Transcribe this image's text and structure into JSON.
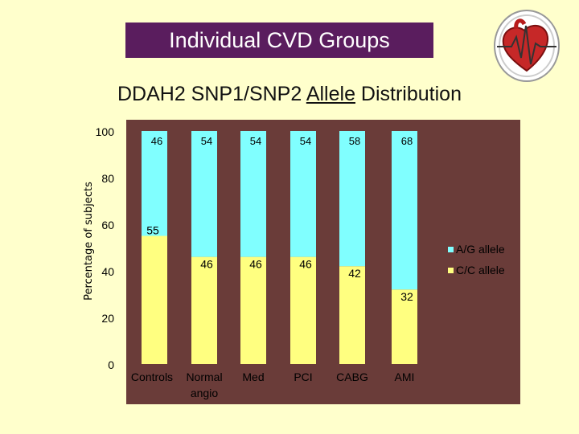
{
  "header": {
    "title": "Individual CVD Groups"
  },
  "subtitle": {
    "pre": "DDAH2 SNP1/SNP2 ",
    "underlined": "Allele",
    "post": " Distribution"
  },
  "logo": {
    "icon": "heart-ecg-icon"
  },
  "colors": {
    "plot_bg": "#6a3c39",
    "top_series": "#80ffff",
    "bottom_series": "#ffff80",
    "banner": "#5a1d5e",
    "page_bg": "#ffffcc"
  },
  "chart_data": {
    "type": "bar",
    "stacked": true,
    "title": "DDAH2 SNP1/SNP2 Allele Distribution",
    "xlabel": "",
    "ylabel": "Percentage of subjects",
    "categories": [
      "Controls",
      "Normal angio",
      "Med",
      "PCI",
      "CABG",
      "AMI"
    ],
    "category_lines": [
      [
        "Controls"
      ],
      [
        "Normal",
        "angio"
      ],
      [
        "Med"
      ],
      [
        "PCI"
      ],
      [
        "CABG"
      ],
      [
        "AMI"
      ]
    ],
    "series": [
      {
        "name": "C/C allele",
        "values": [
          55,
          46,
          46,
          46,
          42,
          32
        ],
        "color": "#ffff80"
      },
      {
        "name": "A/G allele",
        "values": [
          46,
          54,
          54,
          54,
          58,
          68
        ],
        "color": "#80ffff"
      }
    ],
    "ylim": [
      0,
      100
    ],
    "yticks": [
      0,
      20,
      40,
      60,
      80,
      100
    ],
    "legend": [
      "A/G allele",
      "C/C allele"
    ],
    "legend_position": "right"
  }
}
